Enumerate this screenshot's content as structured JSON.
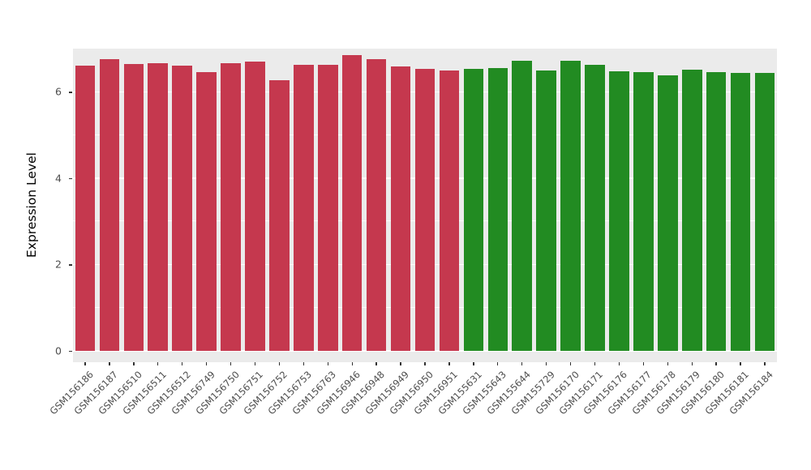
{
  "chart_data": {
    "type": "bar",
    "title": "",
    "xlabel": "",
    "ylabel": "Expression Level",
    "ylim": [
      0,
      7.0
    ],
    "yticks": [
      0,
      2,
      4,
      6
    ],
    "yticks_minor": [
      1,
      3,
      5
    ],
    "grid": "on",
    "legend": "none",
    "categories": [
      "GSM156186",
      "GSM156187",
      "GSM156510",
      "GSM156511",
      "GSM156512",
      "GSM156749",
      "GSM156750",
      "GSM156751",
      "GSM156752",
      "GSM156753",
      "GSM156763",
      "GSM156946",
      "GSM156948",
      "GSM156949",
      "GSM156950",
      "GSM156951",
      "GSM155631",
      "GSM155643",
      "GSM155644",
      "GSM155729",
      "GSM156170",
      "GSM156171",
      "GSM156176",
      "GSM156177",
      "GSM156178",
      "GSM156179",
      "GSM156180",
      "GSM156181",
      "GSM156184"
    ],
    "values": [
      6.6,
      6.75,
      6.65,
      6.67,
      6.6,
      6.45,
      6.67,
      6.7,
      6.27,
      6.62,
      6.62,
      6.85,
      6.75,
      6.58,
      6.53,
      6.5,
      6.53,
      6.55,
      6.72,
      6.5,
      6.72,
      6.62,
      6.48,
      6.45,
      6.38,
      6.52,
      6.45,
      6.43,
      6.43
    ],
    "groups": [
      0,
      0,
      0,
      0,
      0,
      0,
      0,
      0,
      0,
      0,
      0,
      0,
      0,
      0,
      0,
      0,
      1,
      1,
      1,
      1,
      1,
      1,
      1,
      1,
      1,
      1,
      1,
      1,
      1
    ],
    "group_colors": [
      "#C5384E",
      "#228B22"
    ]
  },
  "style": {
    "panel_bg": "#EBEBEB",
    "grid_color": "#FFFFFF",
    "tick_text_color": "#4D4D4D",
    "axis_title_color": "#000000",
    "figure_bg": "#FFFFFF"
  }
}
